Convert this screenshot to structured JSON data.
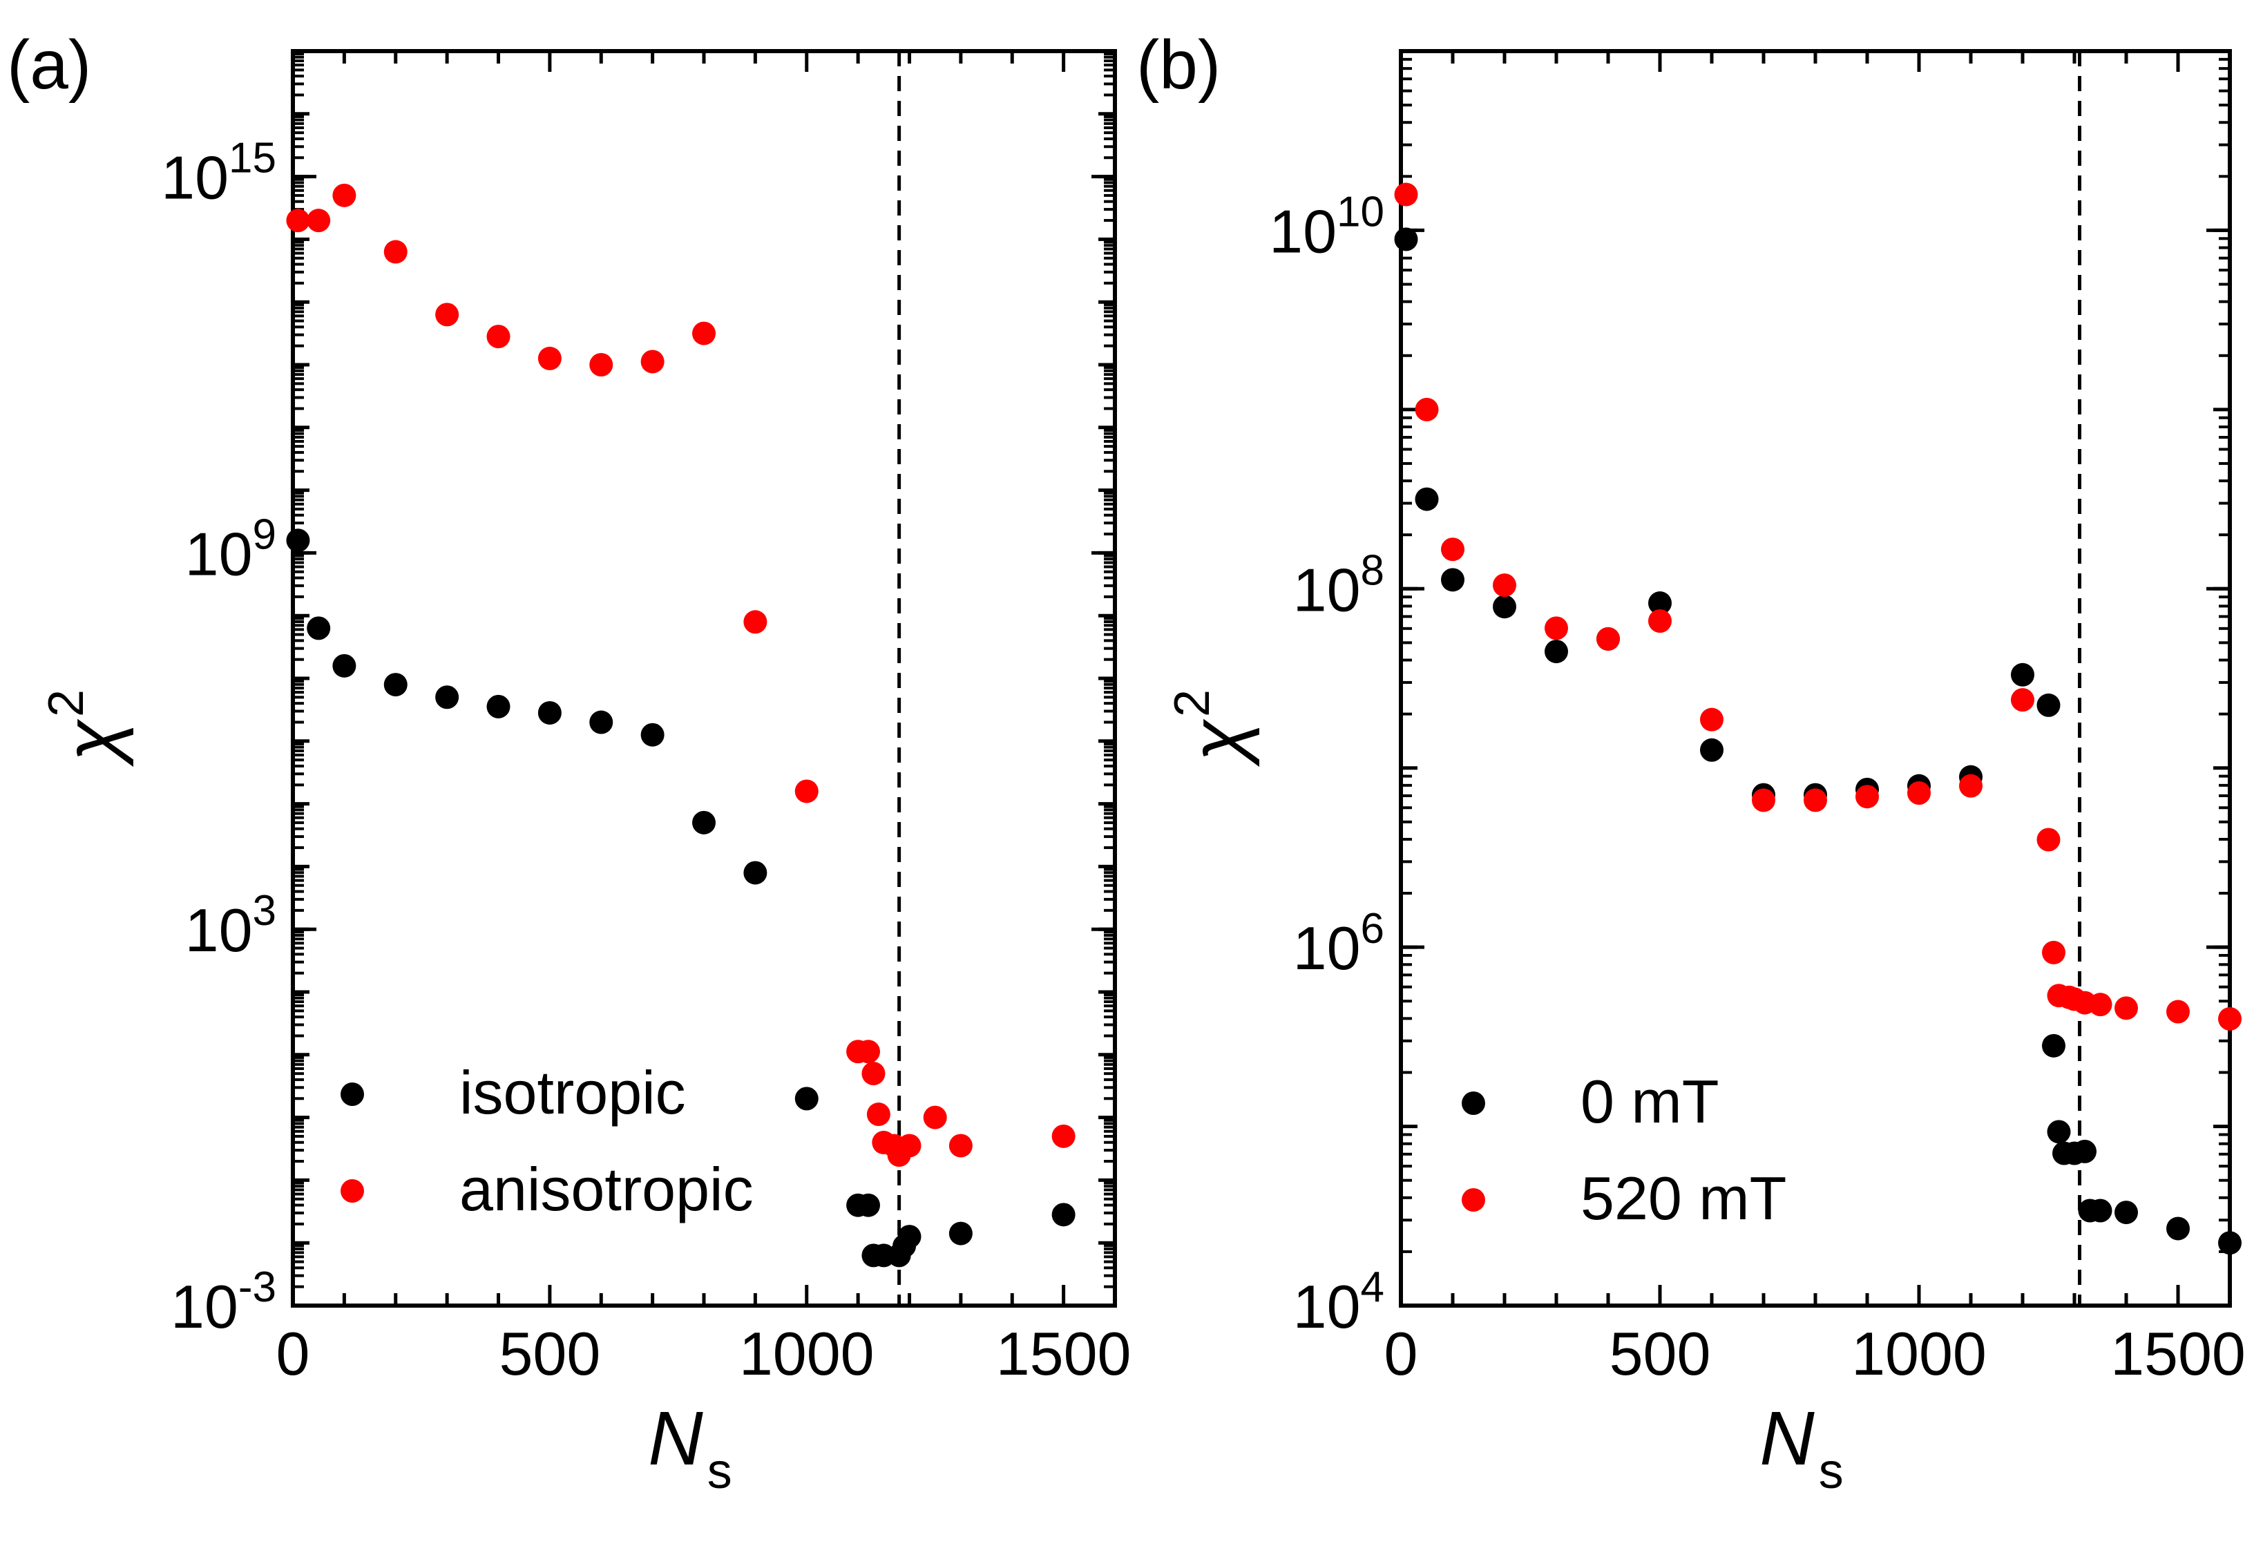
{
  "figure": {
    "panel_labels": [
      "(a)",
      "(b)"
    ]
  },
  "chart_data": [
    {
      "type": "scatter",
      "panel": "(a)",
      "xlabel": "N",
      "xlabel_sub": "s",
      "ylabel": "χ",
      "ylabel_sup": "2",
      "yscale": "log",
      "xlim": [
        0,
        1600
      ],
      "ylim_exp": [
        -3,
        17
      ],
      "xticks": [
        0,
        500,
        1000,
        1500
      ],
      "xtick_labels": [
        "0",
        "500",
        "1000",
        "1500"
      ],
      "yticks_exp": [
        -3,
        3,
        9,
        15
      ],
      "ytick_labels": [
        {
          "base": "10",
          "exp": "-3"
        },
        {
          "base": "10",
          "exp": "3"
        },
        {
          "base": "10",
          "exp": "9"
        },
        {
          "base": "10",
          "exp": "15"
        }
      ],
      "vline_x": 1180,
      "legend": {
        "placement": "lower-left",
        "entries": [
          "isotropic",
          "anisotropic"
        ]
      },
      "series": [
        {
          "name": "isotropic",
          "color": "#000000",
          "log10_values": [
            [
              10,
              9.2
            ],
            [
              50,
              7.8
            ],
            [
              100,
              7.2
            ],
            [
              200,
              6.9
            ],
            [
              300,
              6.7
            ],
            [
              400,
              6.55
            ],
            [
              500,
              6.45
            ],
            [
              600,
              6.3
            ],
            [
              700,
              6.1
            ],
            [
              800,
              4.7
            ],
            [
              900,
              3.9
            ],
            [
              1000,
              0.3
            ],
            [
              1100,
              -1.4
            ],
            [
              1120,
              -1.4
            ],
            [
              1130,
              -2.2
            ],
            [
              1150,
              -2.2
            ],
            [
              1180,
              -2.2
            ],
            [
              1190,
              -2.05
            ],
            [
              1200,
              -1.9
            ],
            [
              1300,
              -1.85
            ],
            [
              1500,
              -1.55
            ]
          ]
        },
        {
          "name": "anisotropic",
          "color": "#ff0000",
          "log10_values": [
            [
              10,
              14.3
            ],
            [
              50,
              14.3
            ],
            [
              100,
              14.7
            ],
            [
              200,
              13.8
            ],
            [
              300,
              12.8
            ],
            [
              400,
              12.45
            ],
            [
              500,
              12.1
            ],
            [
              600,
              12.0
            ],
            [
              700,
              12.05
            ],
            [
              800,
              12.5
            ],
            [
              900,
              7.9
            ],
            [
              1000,
              5.2
            ],
            [
              1100,
              1.05
            ],
            [
              1120,
              1.05
            ],
            [
              1130,
              0.7
            ],
            [
              1140,
              0.05
            ],
            [
              1150,
              -0.4
            ],
            [
              1170,
              -0.45
            ],
            [
              1180,
              -0.6
            ],
            [
              1200,
              -0.45
            ],
            [
              1250,
              0.0
            ],
            [
              1300,
              -0.45
            ],
            [
              1500,
              -0.3
            ]
          ]
        }
      ]
    },
    {
      "type": "scatter",
      "panel": "(b)",
      "xlabel": "N",
      "xlabel_sub": "s",
      "ylabel": "χ",
      "ylabel_sup": "2",
      "yscale": "log",
      "xlim": [
        0,
        1600
      ],
      "ylim_exp": [
        4,
        11
      ],
      "xticks": [
        0,
        500,
        1000,
        1500
      ],
      "xtick_labels": [
        "0",
        "500",
        "1000",
        "1500"
      ],
      "yticks_exp": [
        4,
        6,
        8,
        10
      ],
      "ytick_labels": [
        {
          "base": "10",
          "exp": "4"
        },
        {
          "base": "10",
          "exp": "6"
        },
        {
          "base": "10",
          "exp": "8"
        },
        {
          "base": "10",
          "exp": "10"
        }
      ],
      "vline_x": 1310,
      "legend": {
        "placement": "lower-left",
        "entries": [
          "0 mT",
          "520 mT"
        ]
      },
      "series": [
        {
          "name": "0 mT",
          "color": "#000000",
          "log10_values": [
            [
              10,
              9.95
            ],
            [
              50,
              8.5
            ],
            [
              100,
              8.05
            ],
            [
              200,
              7.9
            ],
            [
              300,
              7.65
            ],
            [
              400,
              7.72
            ],
            [
              500,
              7.92
            ],
            [
              600,
              7.1
            ],
            [
              700,
              6.85
            ],
            [
              800,
              6.85
            ],
            [
              900,
              6.88
            ],
            [
              1000,
              6.9
            ],
            [
              1100,
              6.95
            ],
            [
              1200,
              7.52
            ],
            [
              1250,
              7.35
            ],
            [
              1260,
              5.45
            ],
            [
              1270,
              4.97
            ],
            [
              1280,
              4.85
            ],
            [
              1300,
              4.85
            ],
            [
              1320,
              4.86
            ],
            [
              1330,
              4.53
            ],
            [
              1350,
              4.53
            ],
            [
              1400,
              4.52
            ],
            [
              1500,
              4.43
            ],
            [
              1600,
              4.35
            ]
          ]
        },
        {
          "name": "520 mT",
          "color": "#ff0000",
          "log10_values": [
            [
              10,
              10.2
            ],
            [
              50,
              9.0
            ],
            [
              100,
              8.22
            ],
            [
              200,
              8.02
            ],
            [
              300,
              7.78
            ],
            [
              400,
              7.72
            ],
            [
              500,
              7.82
            ],
            [
              600,
              7.27
            ],
            [
              700,
              6.82
            ],
            [
              800,
              6.82
            ],
            [
              900,
              6.84
            ],
            [
              1000,
              6.86
            ],
            [
              1100,
              6.9
            ],
            [
              1200,
              7.38
            ],
            [
              1250,
              6.6
            ],
            [
              1260,
              5.97
            ],
            [
              1270,
              5.73
            ],
            [
              1290,
              5.72
            ],
            [
              1300,
              5.71
            ],
            [
              1320,
              5.69
            ],
            [
              1350,
              5.68
            ],
            [
              1400,
              5.66
            ],
            [
              1500,
              5.64
            ],
            [
              1600,
              5.6
            ]
          ]
        }
      ]
    }
  ]
}
